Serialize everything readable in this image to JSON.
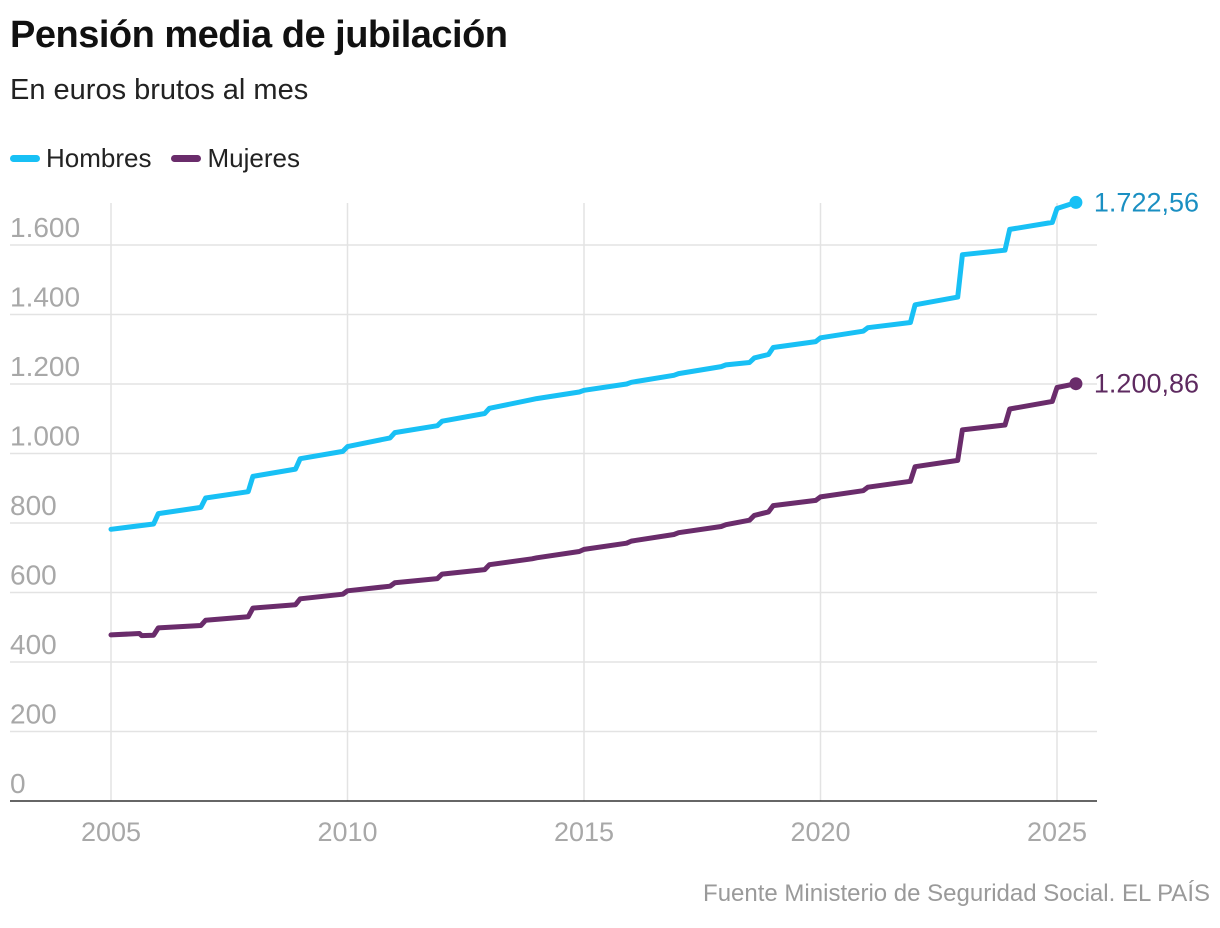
{
  "header": {
    "title": "Pensión media de jubilación",
    "subtitle": "En euros brutos al mes"
  },
  "legend": {
    "items": [
      {
        "label": "Hombres",
        "color": "#18c0f5"
      },
      {
        "label": "Mujeres",
        "color": "#6a2c6b"
      }
    ]
  },
  "footer": {
    "source": "Fuente Ministerio de Seguridad Social. EL PAÍS"
  },
  "chart_data": {
    "type": "line",
    "xlabel": "",
    "ylabel": "",
    "xlim": [
      2004.7,
      2025.9
    ],
    "ylim": [
      0,
      1700
    ],
    "y_ticks": [
      0,
      200,
      400,
      600,
      800,
      1000,
      1200,
      1400,
      1600
    ],
    "y_tick_labels": [
      "0",
      "200",
      "400",
      "600",
      "800",
      "1.000",
      "1.200",
      "1.400",
      "1.600"
    ],
    "x_ticks": [
      2005,
      2010,
      2015,
      2020,
      2025
    ],
    "x_tick_labels": [
      "2005",
      "2010",
      "2015",
      "2020",
      "2025"
    ],
    "grid": {
      "horizontal": true,
      "vertical": true
    },
    "legend_position": "top-left",
    "series": [
      {
        "name": "Hombres",
        "color": "#18c0f5",
        "end_label": "1.722,56",
        "end_label_color": "#1a8fc2",
        "points": [
          [
            2005.0,
            782
          ],
          [
            2005.9,
            797
          ],
          [
            2006.0,
            827
          ],
          [
            2006.9,
            845
          ],
          [
            2007.0,
            872
          ],
          [
            2007.9,
            890
          ],
          [
            2008.0,
            934
          ],
          [
            2008.9,
            955
          ],
          [
            2009.0,
            985
          ],
          [
            2009.9,
            1006
          ],
          [
            2010.0,
            1020
          ],
          [
            2010.9,
            1045
          ],
          [
            2011.0,
            1060
          ],
          [
            2011.9,
            1080
          ],
          [
            2012.0,
            1093
          ],
          [
            2012.9,
            1115
          ],
          [
            2013.0,
            1130
          ],
          [
            2013.9,
            1155
          ],
          [
            2014.0,
            1158
          ],
          [
            2014.9,
            1177
          ],
          [
            2015.0,
            1182
          ],
          [
            2015.9,
            1200
          ],
          [
            2016.0,
            1205
          ],
          [
            2016.9,
            1225
          ],
          [
            2017.0,
            1230
          ],
          [
            2017.9,
            1250
          ],
          [
            2018.0,
            1255
          ],
          [
            2018.5,
            1262
          ],
          [
            2018.6,
            1275
          ],
          [
            2018.9,
            1285
          ],
          [
            2019.0,
            1305
          ],
          [
            2019.9,
            1322
          ],
          [
            2020.0,
            1333
          ],
          [
            2020.9,
            1352
          ],
          [
            2021.0,
            1362
          ],
          [
            2021.9,
            1377
          ],
          [
            2022.0,
            1428
          ],
          [
            2022.9,
            1450
          ],
          [
            2023.0,
            1572
          ],
          [
            2023.9,
            1585
          ],
          [
            2024.0,
            1645
          ],
          [
            2024.9,
            1665
          ],
          [
            2025.0,
            1705
          ],
          [
            2025.4,
            1722.56
          ]
        ]
      },
      {
        "name": "Mujeres",
        "color": "#6a2c6b",
        "end_label": "1.200,86",
        "end_label_color": "#5e2a60",
        "points": [
          [
            2005.0,
            478
          ],
          [
            2005.6,
            482
          ],
          [
            2005.65,
            476
          ],
          [
            2005.9,
            477
          ],
          [
            2006.0,
            498
          ],
          [
            2006.9,
            505
          ],
          [
            2007.0,
            520
          ],
          [
            2007.9,
            530
          ],
          [
            2008.0,
            555
          ],
          [
            2008.9,
            565
          ],
          [
            2009.0,
            582
          ],
          [
            2009.9,
            595
          ],
          [
            2010.0,
            605
          ],
          [
            2010.9,
            618
          ],
          [
            2011.0,
            628
          ],
          [
            2011.9,
            640
          ],
          [
            2012.0,
            653
          ],
          [
            2012.9,
            666
          ],
          [
            2013.0,
            680
          ],
          [
            2013.9,
            697
          ],
          [
            2014.0,
            700
          ],
          [
            2014.9,
            718
          ],
          [
            2015.0,
            724
          ],
          [
            2015.9,
            742
          ],
          [
            2016.0,
            748
          ],
          [
            2016.9,
            767
          ],
          [
            2017.0,
            772
          ],
          [
            2017.9,
            790
          ],
          [
            2018.0,
            795
          ],
          [
            2018.5,
            808
          ],
          [
            2018.6,
            822
          ],
          [
            2018.9,
            832
          ],
          [
            2019.0,
            850
          ],
          [
            2019.9,
            865
          ],
          [
            2020.0,
            875
          ],
          [
            2020.9,
            893
          ],
          [
            2021.0,
            903
          ],
          [
            2021.9,
            920
          ],
          [
            2022.0,
            962
          ],
          [
            2022.9,
            980
          ],
          [
            2023.0,
            1068
          ],
          [
            2023.9,
            1082
          ],
          [
            2024.0,
            1128
          ],
          [
            2024.9,
            1150
          ],
          [
            2025.0,
            1190
          ],
          [
            2025.4,
            1200.86
          ]
        ]
      }
    ]
  }
}
